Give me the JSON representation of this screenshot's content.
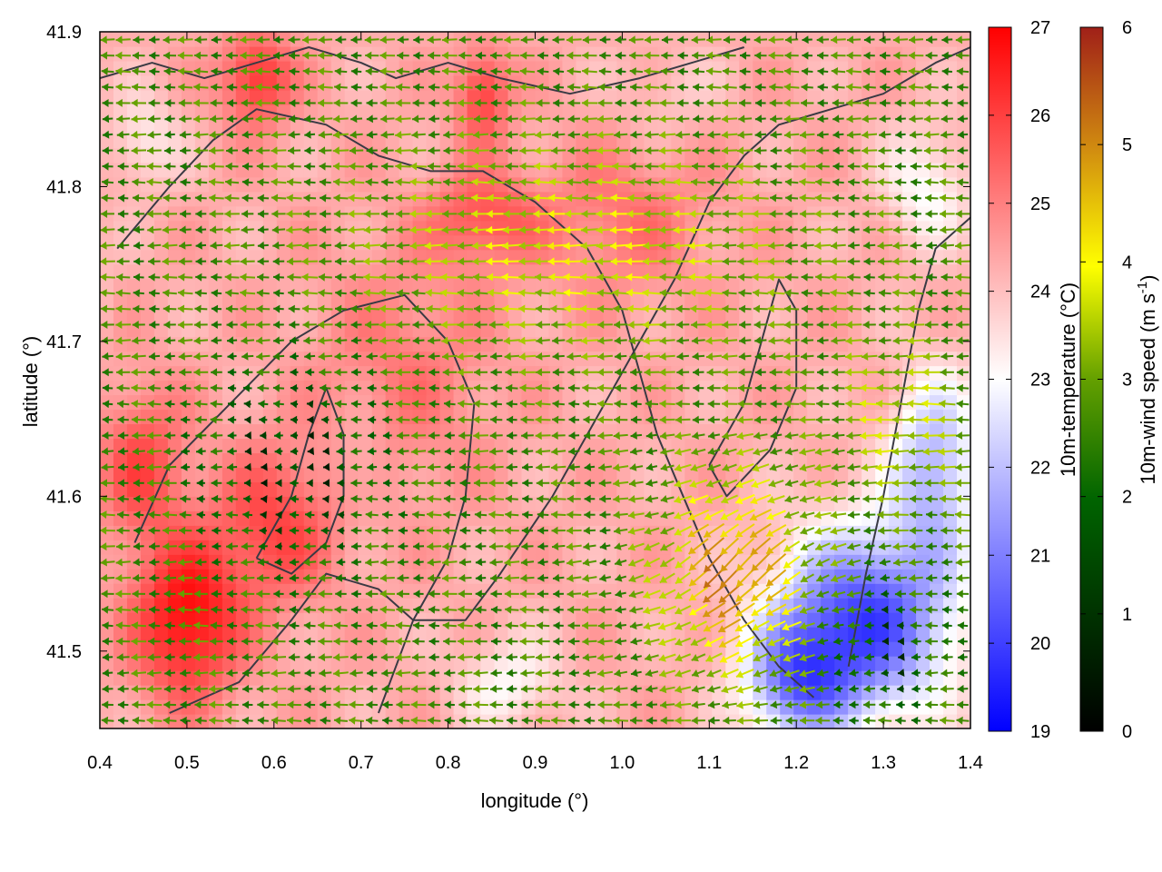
{
  "chart_data": {
    "type": "heatmap",
    "title": "",
    "xlabel": "longitude (°)",
    "ylabel": "latitude (°)",
    "xlim": [
      0.4,
      1.4
    ],
    "ylim": [
      41.45,
      41.9
    ],
    "x_ticks": [
      "0.4",
      "0.5",
      "0.6",
      "0.7",
      "0.8",
      "0.9",
      "1.0",
      "1.1",
      "1.2",
      "1.3",
      "1.4"
    ],
    "y_ticks": [
      "41.5",
      "41.6",
      "41.7",
      "41.8",
      "41.9"
    ],
    "grid": false,
    "temperature_colorbar": {
      "label": "10m-temperature (°C)",
      "range": [
        19,
        27
      ],
      "ticks": [
        "19",
        "20",
        "21",
        "22",
        "23",
        "24",
        "25",
        "26",
        "27"
      ],
      "colors": [
        "#0000ff",
        "#ffffff",
        "#ff0000"
      ]
    },
    "wind_colorbar": {
      "label": "10m-wind speed (m s-1)",
      "label_prefix": "10m-wind speed (m s",
      "label_superscript": "-1",
      "label_suffix": ")",
      "range": [
        0,
        6
      ],
      "ticks": [
        "0",
        "1",
        "2",
        "3",
        "4",
        "5",
        "6"
      ],
      "colors": [
        "#000000",
        "#006400",
        "#64a000",
        "#ffff00",
        "#d08a10",
        "#a02018"
      ]
    },
    "contour_color": "#3a3a44"
  }
}
